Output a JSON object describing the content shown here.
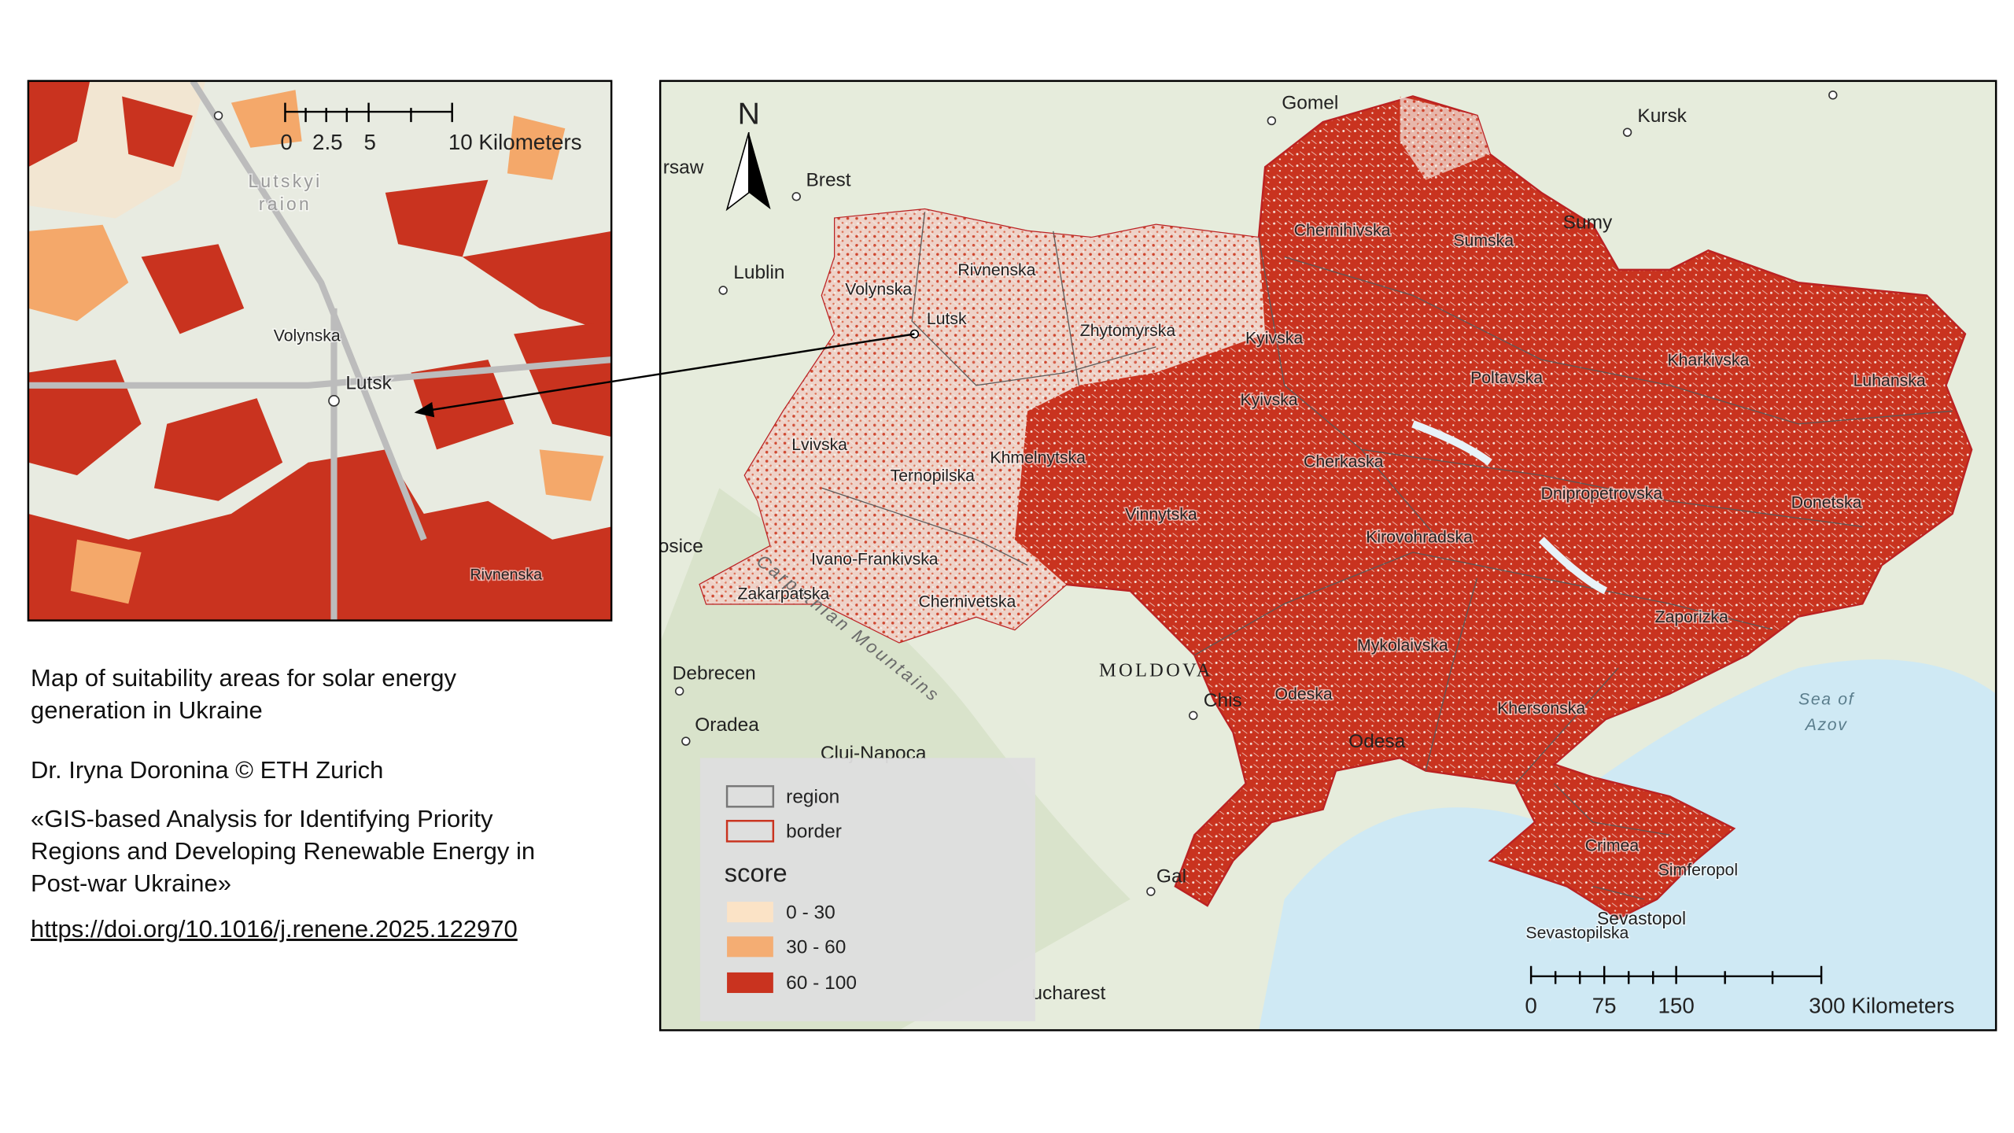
{
  "inset": {
    "scale_labels": [
      "0",
      "2.5",
      "5",
      "10 Kilometers"
    ],
    "labels": {
      "raion_1": "Lutskyi",
      "raion_2": "raion",
      "volynska": "Volynska",
      "lutsk": "Lutsk",
      "rivnenska": "Rivnenska"
    }
  },
  "main": {
    "north": "N",
    "places": [
      "Gomel",
      "Kursk",
      "Brest",
      "Lublin",
      "rsaw",
      "Sumy",
      "Debrecen",
      "Oradea",
      "Cluj-Napoca",
      "MOLDOVA",
      "Chis",
      "Odesa",
      "Sea of",
      "Azov",
      "ucharest",
      "osice",
      "Gal",
      "Carpathian Mountains",
      "Simferopol",
      "Sevastopol"
    ],
    "regions": [
      "Volynska",
      "Rivnenska",
      "Lutsk",
      "Zhytomyrska",
      "Chernihivska",
      "Sumska",
      "Kyivska",
      "Kyivska",
      "Poltavska",
      "Kharkivska",
      "Luhanska",
      "Lvivska",
      "Khmelnytska",
      "Cherkaska",
      "Ternopilska",
      "Dnipropetrovska",
      "Donetska",
      "Vinnytska",
      "Kirovohradska",
      "Ivano-Frankivska",
      "Zakarpatska",
      "Chernivetska",
      "Zaporizka",
      "Mykolaivska",
      "Odeska",
      "Khersonska",
      "Crimea",
      "Sevastopilska"
    ],
    "scale_labels": [
      "0",
      "75",
      "150",
      "300 Kilometers"
    ],
    "legend": {
      "region": "region",
      "border": "border",
      "title": "score",
      "classes": [
        "0 - 30",
        "30 - 60",
        "60 - 100"
      ]
    }
  },
  "caption": {
    "title": [
      "Map of suitability areas for solar energy",
      "generation in Ukraine"
    ],
    "author": "Dr. Iryna Doronina © ETH Zurich",
    "paper": [
      "«GIS-based Analysis for Identifying Priority",
      "Regions and Developing Renewable Energy in",
      "Post-war Ukraine»"
    ],
    "doi": "https://doi.org/10.1016/j.renene.2025.122970"
  }
}
